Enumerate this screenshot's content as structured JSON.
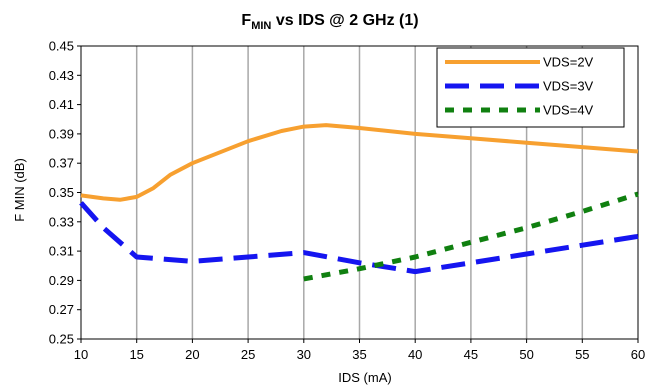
{
  "chart_data": {
    "type": "line",
    "title_main": "F",
    "title_sub": "MIN",
    "title_rest": " vs IDS @ 2 GHz (1)",
    "xlabel": "IDS (mA)",
    "ylabel": "F MIN (dB)",
    "xlim": [
      10,
      60
    ],
    "ylim": [
      0.25,
      0.45
    ],
    "x_ticks": [
      "10",
      "15",
      "20",
      "25",
      "30",
      "35",
      "40",
      "45",
      "50",
      "55",
      "60"
    ],
    "y_ticks": [
      "0.25",
      "0.27",
      "0.29",
      "0.31",
      "0.33",
      "0.35",
      "0.37",
      "0.39",
      "0.41",
      "0.43",
      "0.45"
    ],
    "grid": "vertical",
    "legend_position": "top-right",
    "series": [
      {
        "name": "VDS=2V",
        "color": "#F7A030",
        "dash": "solid",
        "points": [
          [
            10,
            0.348
          ],
          [
            12,
            0.346
          ],
          [
            13.5,
            0.345
          ],
          [
            15,
            0.347
          ],
          [
            16.5,
            0.353
          ],
          [
            18,
            0.362
          ],
          [
            20,
            0.37
          ],
          [
            25,
            0.385
          ],
          [
            28,
            0.392
          ],
          [
            30,
            0.395
          ],
          [
            32,
            0.396
          ],
          [
            35,
            0.394
          ],
          [
            40,
            0.39
          ],
          [
            45,
            0.387
          ],
          [
            50,
            0.384
          ],
          [
            55,
            0.381
          ],
          [
            60,
            0.378
          ]
        ]
      },
      {
        "name": "VDS=3V",
        "color": "#1515F0",
        "dash": "long-dash",
        "points": [
          [
            10,
            0.343
          ],
          [
            12,
            0.326
          ],
          [
            15,
            0.306
          ],
          [
            20,
            0.303
          ],
          [
            25,
            0.306
          ],
          [
            30,
            0.309
          ],
          [
            35,
            0.302
          ],
          [
            40,
            0.296
          ],
          [
            45,
            0.302
          ],
          [
            50,
            0.308
          ],
          [
            55,
            0.314
          ],
          [
            60,
            0.32
          ]
        ]
      },
      {
        "name": "VDS=4V",
        "color": "#108010",
        "dash": "short-dash",
        "points": [
          [
            30,
            0.291
          ],
          [
            35,
            0.298
          ],
          [
            40,
            0.306
          ],
          [
            45,
            0.316
          ],
          [
            50,
            0.326
          ],
          [
            55,
            0.337
          ],
          [
            60,
            0.349
          ]
        ]
      }
    ]
  }
}
